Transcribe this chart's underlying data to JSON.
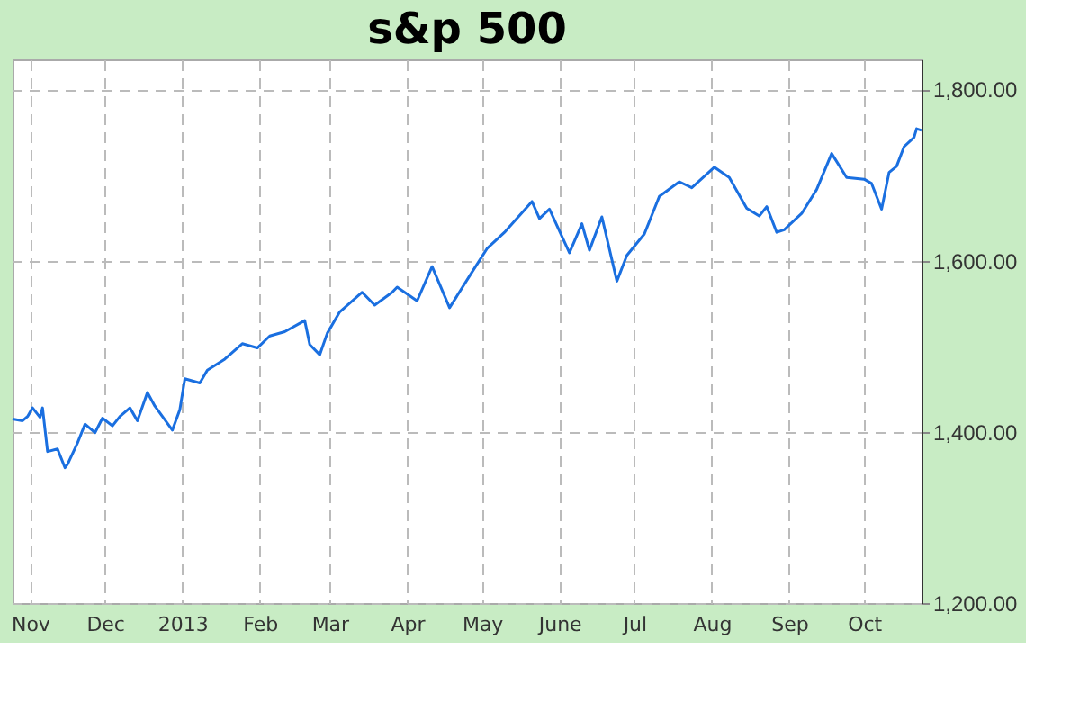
{
  "chart_data": {
    "type": "line",
    "title": "s&p 500",
    "x": [
      "2012-10-25",
      "2012-10-29",
      "2012-10-31",
      "2012-11-02",
      "2012-11-05",
      "2012-11-06",
      "2012-11-08",
      "2012-11-12",
      "2012-11-15",
      "2012-11-16",
      "2012-11-20",
      "2012-11-23",
      "2012-11-27",
      "2012-11-30",
      "2012-12-04",
      "2012-12-07",
      "2012-12-11",
      "2012-12-14",
      "2012-12-18",
      "2012-12-21",
      "2012-12-28",
      "2012-12-31",
      "2013-01-02",
      "2013-01-08",
      "2013-01-11",
      "2013-01-18",
      "2013-01-25",
      "2013-01-31",
      "2013-02-05",
      "2013-02-11",
      "2013-02-19",
      "2013-02-21",
      "2013-02-25",
      "2013-02-28",
      "2013-03-05",
      "2013-03-14",
      "2013-03-19",
      "2013-03-26",
      "2013-03-28",
      "2013-04-05",
      "2013-04-11",
      "2013-04-18",
      "2013-04-26",
      "2013-05-03",
      "2013-05-10",
      "2013-05-21",
      "2013-05-24",
      "2013-05-28",
      "2013-06-05",
      "2013-06-10",
      "2013-06-13",
      "2013-06-18",
      "2013-06-24",
      "2013-06-28",
      "2013-07-05",
      "2013-07-11",
      "2013-07-19",
      "2013-07-24",
      "2013-08-02",
      "2013-08-08",
      "2013-08-15",
      "2013-08-20",
      "2013-08-23",
      "2013-08-27",
      "2013-08-30",
      "2013-09-06",
      "2013-09-12",
      "2013-09-18",
      "2013-09-24",
      "2013-10-01",
      "2013-10-04",
      "2013-10-08",
      "2013-10-11",
      "2013-10-14",
      "2013-10-17",
      "2013-10-21",
      "2013-10-22",
      "2013-10-24"
    ],
    "series": [
      {
        "color": "#1a6fe0",
        "values": [
          1415,
          1413,
          1418,
          1428,
          1417,
          1428,
          1377,
          1380,
          1358,
          1362,
          1387,
          1409,
          1399,
          1416,
          1407,
          1418,
          1428,
          1413,
          1446,
          1430,
          1402,
          1426,
          1462,
          1457,
          1472,
          1485,
          1503,
          1498,
          1512,
          1517,
          1530,
          1502,
          1490,
          1515,
          1540,
          1563,
          1548,
          1563,
          1569,
          1553,
          1593,
          1545,
          1582,
          1614,
          1633,
          1669,
          1649,
          1660,
          1609,
          1643,
          1612,
          1651,
          1576,
          1606,
          1631,
          1675,
          1692,
          1685,
          1709,
          1697,
          1661,
          1652,
          1663,
          1633,
          1636,
          1655,
          1683,
          1725,
          1697,
          1695,
          1690,
          1660,
          1703,
          1710,
          1733,
          1744,
          1754,
          1752
        ]
      }
    ],
    "xlim": [
      "2012-10-25",
      "2013-10-24"
    ],
    "xticks": [
      {
        "value": "2012-11-01",
        "label": "Nov"
      },
      {
        "value": "2012-12-01",
        "label": "Dec"
      },
      {
        "value": "2013-01-01",
        "label": "2013"
      },
      {
        "value": "2013-02-01",
        "label": "Feb"
      },
      {
        "value": "2013-03-01",
        "label": "Mar"
      },
      {
        "value": "2013-04-01",
        "label": "Apr"
      },
      {
        "value": "2013-05-01",
        "label": "May"
      },
      {
        "value": "2013-06-01",
        "label": "June"
      },
      {
        "value": "2013-07-01",
        "label": "Jul"
      },
      {
        "value": "2013-08-01",
        "label": "Aug"
      },
      {
        "value": "2013-09-01",
        "label": "Sep"
      },
      {
        "value": "2013-10-01",
        "label": "Oct"
      }
    ],
    "ylim": [
      1200,
      1835
    ],
    "yticks": [
      {
        "value": 1200,
        "label": "1,200.00"
      },
      {
        "value": 1400,
        "label": "1,400.00"
      },
      {
        "value": 1600,
        "label": "1,600.00"
      },
      {
        "value": 1800,
        "label": "1,800.00"
      }
    ],
    "grid": true,
    "line_style": "solid"
  }
}
